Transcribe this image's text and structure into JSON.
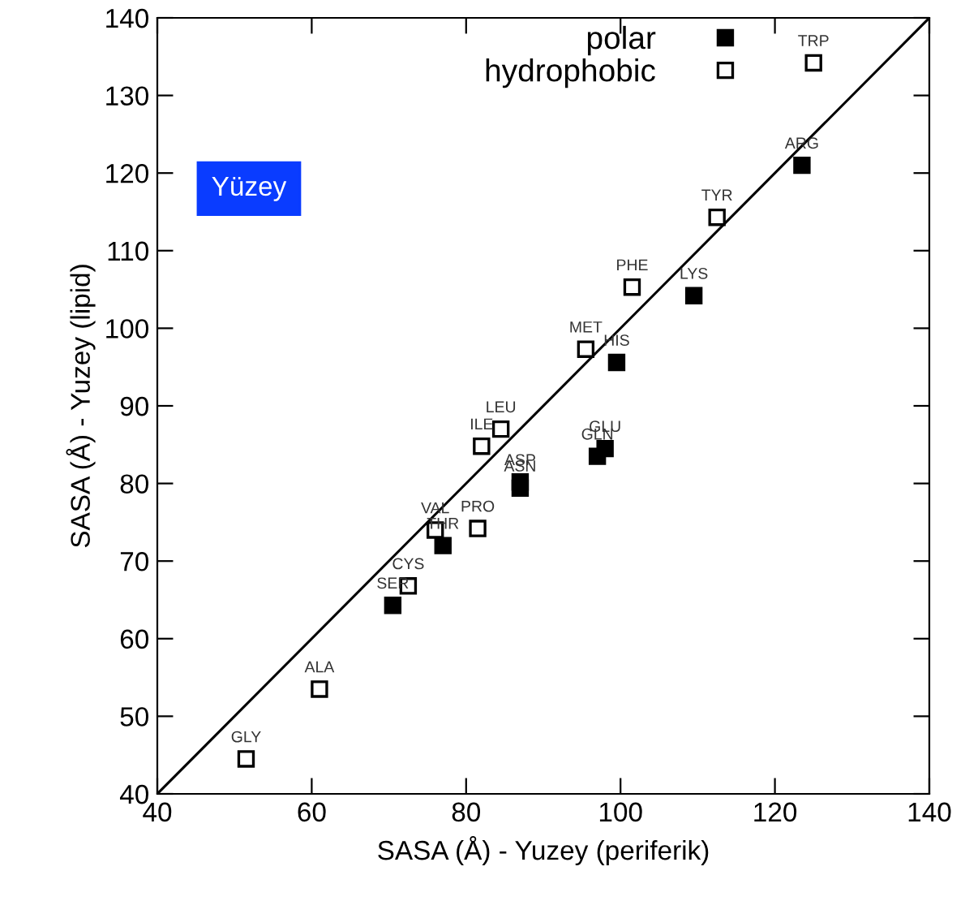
{
  "chart_data": {
    "type": "scatter",
    "xlabel": "SASA (Å) - Yuzey (periferik)",
    "ylabel": "SASA (Å) - Yuzey (lipid)",
    "xlim": [
      40,
      140
    ],
    "ylim": [
      40,
      140
    ],
    "xticks": [
      40,
      60,
      80,
      100,
      120,
      140
    ],
    "yticks": [
      40,
      50,
      60,
      70,
      80,
      90,
      100,
      110,
      120,
      130,
      140
    ],
    "grid": false,
    "legend": "top",
    "marker": "square",
    "series": [
      {
        "name": "polar",
        "color": "#000000",
        "x": [
          70.5,
          77,
          87,
          87,
          97,
          98,
          99.5,
          109.5,
          123.5
        ],
        "values": [
          64.3,
          72,
          79.4,
          80.2,
          83.5,
          84.5,
          95.6,
          104.2,
          121
        ]
      },
      {
        "name": "hydrophobic",
        "color": "#ffffff",
        "x": [
          51.5,
          61,
          72.5,
          76,
          81.5,
          82,
          84.5,
          95.5,
          101.5,
          112.5,
          125
        ],
        "values": [
          44.5,
          53.5,
          66.8,
          74,
          74.2,
          84.8,
          87,
          97.3,
          105.3,
          114.3,
          134.2
        ]
      },
      {
        "type": "line",
        "color": "#000000",
        "marker": "none",
        "x": [
          40,
          140
        ],
        "values": [
          40,
          140
        ]
      }
    ],
    "annotations": [
      {
        "text": "SER",
        "x": 70.5,
        "y": 64.3
      },
      {
        "text": "THR",
        "x": 77,
        "y": 72
      },
      {
        "text": "ASN",
        "x": 87,
        "y": 79.4
      },
      {
        "text": "ASP",
        "x": 87,
        "y": 80.2
      },
      {
        "text": "GLN",
        "x": 97,
        "y": 83.5
      },
      {
        "text": "GLU",
        "x": 98,
        "y": 84.5
      },
      {
        "text": "HIS",
        "x": 99.5,
        "y": 95.6
      },
      {
        "text": "LYS",
        "x": 109.5,
        "y": 104.2
      },
      {
        "text": "ARG",
        "x": 123.5,
        "y": 121
      },
      {
        "text": "GLY",
        "x": 51.5,
        "y": 44.5
      },
      {
        "text": "ALA",
        "x": 61,
        "y": 53.5
      },
      {
        "text": "CYS",
        "x": 72.5,
        "y": 66.8
      },
      {
        "text": "VAL",
        "x": 76,
        "y": 74
      },
      {
        "text": "PRO",
        "x": 81.5,
        "y": 74.2
      },
      {
        "text": "ILE",
        "x": 82,
        "y": 84.8
      },
      {
        "text": "LEU",
        "x": 84.5,
        "y": 87
      },
      {
        "text": "MET",
        "x": 95.5,
        "y": 97.3
      },
      {
        "text": "PHE",
        "x": 101.5,
        "y": 105.3
      },
      {
        "text": "TYR",
        "x": 112.5,
        "y": 114.3
      },
      {
        "text": "TRP",
        "x": 125,
        "y": 134.2
      },
      "Yüzey"
    ]
  }
}
